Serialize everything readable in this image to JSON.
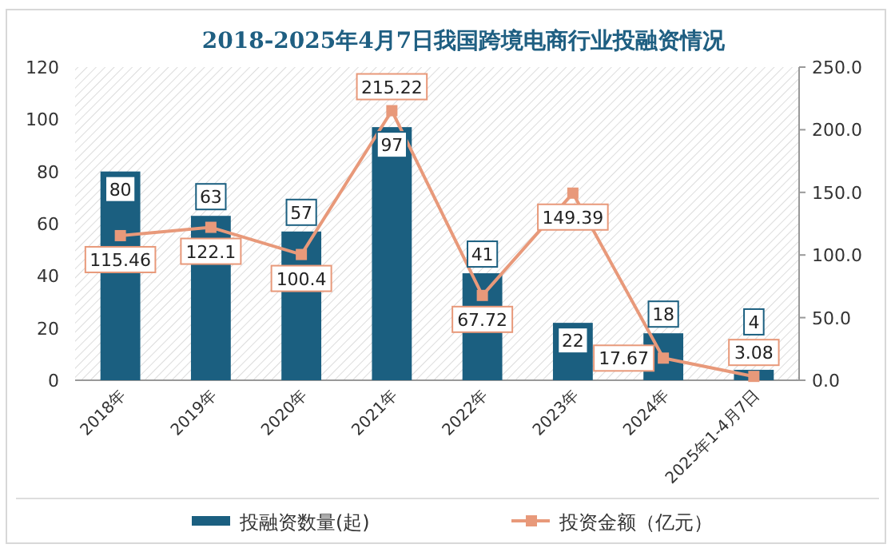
{
  "chart_data": {
    "type": "bar",
    "title": "2018-2025年4月7日我国跨境电商行业投融资情况",
    "categories": [
      "2018年",
      "2019年",
      "2020年",
      "2021年",
      "2022年",
      "2023年",
      "2024年",
      "2025年1-4月7日"
    ],
    "series": [
      {
        "name": "投融资数量(起)",
        "type": "bar",
        "color": "#1b5f80",
        "values": [
          80,
          63,
          57,
          97,
          41,
          22,
          18,
          4
        ]
      },
      {
        "name": "投资金额（亿元）",
        "type": "line",
        "axis": "y2",
        "color": "#e8997a",
        "marker": "square",
        "values": [
          115.46,
          122.1,
          100.4,
          215.22,
          67.72,
          149.39,
          17.67,
          3.08
        ]
      }
    ],
    "ylim": [
      0,
      120
    ],
    "yticks": [
      0,
      20,
      40,
      60,
      80,
      100,
      120
    ],
    "y2lim": [
      0,
      250
    ],
    "y2ticks": [
      {
        "value": 0,
        "label": "0.0"
      },
      {
        "value": 50,
        "label": "50.0"
      },
      {
        "value": 100,
        "label": "100.0"
      },
      {
        "value": 150,
        "label": "150.0"
      },
      {
        "value": 200,
        "label": "200.0"
      },
      {
        "value": 250,
        "label": "250.0"
      }
    ],
    "data_labels": true,
    "legend": "bottom",
    "grid": false
  }
}
